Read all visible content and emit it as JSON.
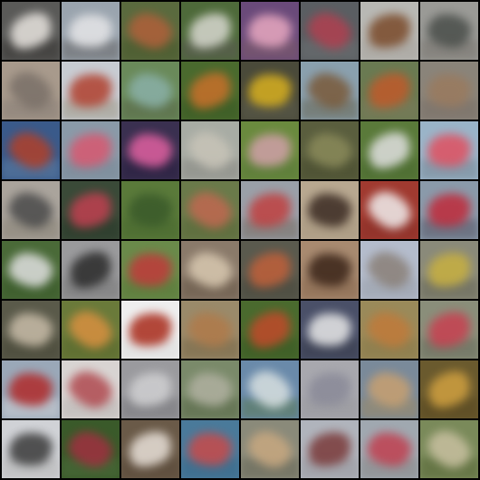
{
  "grid": {
    "rows": 8,
    "cols": 8,
    "background": "#000000",
    "tiles": [
      {
        "bg": "#5a5a58",
        "subject": "#e8e4df",
        "floor": "#3a3836"
      },
      {
        "bg": "#9aa4ae",
        "subject": "#e6e6e8",
        "floor": "#6a6a6c"
      },
      {
        "bg": "#5a6a3e",
        "subject": "#b0603a",
        "floor": "#4a5a2e"
      },
      {
        "bg": "#4e6a3a",
        "subject": "#d8d8d0",
        "floor": "#5a5a52"
      },
      {
        "bg": "#6a4a7a",
        "subject": "#e8a8c0",
        "floor": "#7a5a6a"
      },
      {
        "bg": "#5a5e62",
        "subject": "#b04050",
        "floor": "#6a6e70"
      },
      {
        "bg": "#b8b8b4",
        "subject": "#7a4a2a",
        "floor": "#a8a49e"
      },
      {
        "bg": "#9a9a96",
        "subject": "#4a4e4a",
        "floor": "#7a7670"
      },
      {
        "bg": "#a89a8c",
        "subject": "#7a7068",
        "floor": "#8a8078"
      },
      {
        "bg": "#c8ccd2",
        "subject": "#b0402e",
        "floor": "#a09a8a"
      },
      {
        "bg": "#6a8a5a",
        "subject": "#8ab0a8",
        "floor": "#5a6a4a"
      },
      {
        "bg": "#4a6a2e",
        "subject": "#c8702a",
        "floor": "#3a5a24"
      },
      {
        "bg": "#4a4a3a",
        "subject": "#d8b020",
        "floor": "#5a5a4a"
      },
      {
        "bg": "#8aa0ae",
        "subject": "#7a5a3a",
        "floor": "#6a6a5a"
      },
      {
        "bg": "#6a7a52",
        "subject": "#c05a2a",
        "floor": "#7a7a5a"
      },
      {
        "bg": "#8a847a",
        "subject": "#9a7a5e",
        "floor": "#7a7068"
      },
      {
        "bg": "#3a5a8a",
        "subject": "#b0402a",
        "floor": "#5a7aa0"
      },
      {
        "bg": "#8a9aa8",
        "subject": "#d85870",
        "floor": "#7a8a98"
      },
      {
        "bg": "#3a3050",
        "subject": "#e060a0",
        "floor": "#2a2040"
      },
      {
        "bg": "#a8aca4",
        "subject": "#c8c4b8",
        "floor": "#8a8a84"
      },
      {
        "bg": "#6a8a3e",
        "subject": "#d0a0a8",
        "floor": "#5a7a3a"
      },
      {
        "bg": "#5a5e3e",
        "subject": "#8a8a5a",
        "floor": "#4a4e30"
      },
      {
        "bg": "#5a7a3a",
        "subject": "#e0e0e0",
        "floor": "#4a6a30"
      },
      {
        "bg": "#9ab4c8",
        "subject": "#e05060",
        "floor": "#7a8a98"
      },
      {
        "bg": "#aaa49c",
        "subject": "#4a4a4a",
        "floor": "#8a8478"
      },
      {
        "bg": "#3a4a38",
        "subject": "#c04050",
        "floor": "#2a3a2a"
      },
      {
        "bg": "#5a7a3a",
        "subject": "#3a5a2a",
        "floor": "#4a6a30"
      },
      {
        "bg": "#6a7a4a",
        "subject": "#c06850",
        "floor": "#5a6a3a"
      },
      {
        "bg": "#9aa0a8",
        "subject": "#c04040",
        "floor": "#7a7068"
      },
      {
        "bg": "#b8a890",
        "subject": "#3a2a22",
        "floor": "#a89880"
      },
      {
        "bg": "#a03a30",
        "subject": "#f0eeee",
        "floor": "#8a3028"
      },
      {
        "bg": "#8a9aaa",
        "subject": "#c02a3a",
        "floor": "#5a5a6a"
      },
      {
        "bg": "#4a6a38",
        "subject": "#e0e0e0",
        "floor": "#3a5a2a"
      },
      {
        "bg": "#9a9a9c",
        "subject": "#2a2a2a",
        "floor": "#7a7a7a"
      },
      {
        "bg": "#6a8a4a",
        "subject": "#c03a3a",
        "floor": "#5a7a3a"
      },
      {
        "bg": "#8a7a6a",
        "subject": "#d8c8b0",
        "floor": "#6a5a4a"
      },
      {
        "bg": "#5a5a4e",
        "subject": "#c0603a",
        "floor": "#4a4a3e"
      },
      {
        "bg": "#a88a70",
        "subject": "#3a2418",
        "floor": "#8a6a50"
      },
      {
        "bg": "#b4bccc",
        "subject": "#8a8078",
        "floor": "#9aa0aa"
      },
      {
        "bg": "#8a8a7a",
        "subject": "#c8b040",
        "floor": "#6a6a5a"
      },
      {
        "bg": "#5a5a4a",
        "subject": "#c8bca8",
        "floor": "#4a4a3a"
      },
      {
        "bg": "#6a7a3a",
        "subject": "#d89040",
        "floor": "#5a6a2e"
      },
      {
        "bg": "#eeeeee",
        "subject": "#a82a1a",
        "floor": "#dcdcdc"
      },
      {
        "bg": "#9a8a6a",
        "subject": "#b07a4a",
        "floor": "#7a6a4a"
      },
      {
        "bg": "#4a6a2e",
        "subject": "#c04a2a",
        "floor": "#3a5a24"
      },
      {
        "bg": "#4a5068",
        "subject": "#e8e8e8",
        "floor": "#3a3e4e"
      },
      {
        "bg": "#9a8a5a",
        "subject": "#c07a3a",
        "floor": "#8a7a4a"
      },
      {
        "bg": "#8a8e7a",
        "subject": "#c84050",
        "floor": "#6a6e5e"
      },
      {
        "bg": "#9aa8b8",
        "subject": "#b02a2a",
        "floor": "#c8ccd2"
      },
      {
        "bg": "#d8d4d2",
        "subject": "#b04a50",
        "floor": "#bab6b4"
      },
      {
        "bg": "#9a9a9e",
        "subject": "#d0d0d2",
        "floor": "#7a7a7e"
      },
      {
        "bg": "#7a8a6a",
        "subject": "#b0b0a0",
        "floor": "#5a6a4a"
      },
      {
        "bg": "#6a8aaa",
        "subject": "#d8e0e0",
        "floor": "#5a7a5a"
      },
      {
        "bg": "#a8a8ae",
        "subject": "#8a8a98",
        "floor": "#9a9a9e"
      },
      {
        "bg": "#7a8a9a",
        "subject": "#c8a070",
        "floor": "#9a8a6a"
      },
      {
        "bg": "#6a5a2e",
        "subject": "#d0a040",
        "floor": "#5a4a22"
      },
      {
        "bg": "#d0d2d6",
        "subject": "#3a3a3a",
        "floor": "#b8b8b8"
      },
      {
        "bg": "#3a5a2a",
        "subject": "#a03040",
        "floor": "#4a6a3a"
      },
      {
        "bg": "#6a5a48",
        "subject": "#e8e0d8",
        "floor": "#5a4a3a"
      },
      {
        "bg": "#4a7a9a",
        "subject": "#c84a4a",
        "floor": "#3a6a8a"
      },
      {
        "bg": "#8a8a7a",
        "subject": "#c8a880",
        "floor": "#6a6a5a"
      },
      {
        "bg": "#b0b4bc",
        "subject": "#7a3a3a",
        "floor": "#9a9aa0"
      },
      {
        "bg": "#a0a8b0",
        "subject": "#c04050",
        "floor": "#8a8a8a"
      },
      {
        "bg": "#7a8a5a",
        "subject": "#c8c0a0",
        "floor": "#5a6a3a"
      }
    ]
  }
}
